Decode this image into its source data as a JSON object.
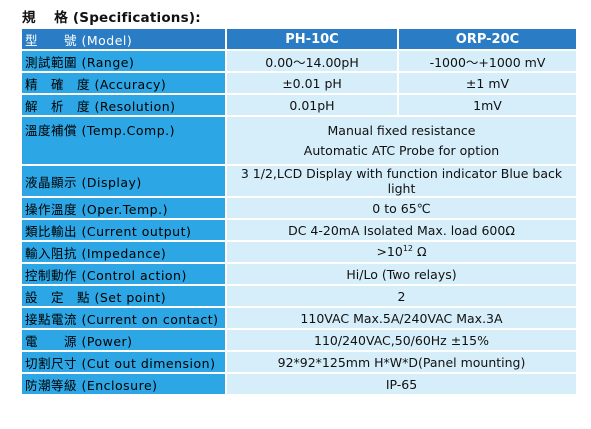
{
  "title": "規　 格 (Specifications):",
  "header": {
    "label": "型　　號 (Model)",
    "col_a": "PH-10C",
    "col_b": "ORP-20C"
  },
  "rows": [
    {
      "label": "測試範圍 (Range)",
      "a": "0.00～14.00pH",
      "b": "-1000～+1000 mV"
    },
    {
      "label": "精　確　度 (Accuracy)",
      "a": "±0.01 pH",
      "b": "±1 mV"
    },
    {
      "label": "解　析　度 (Resolution)",
      "a": "0.01pH",
      "b": "1mV"
    },
    {
      "label": "溫度補償 (Temp.Comp.)",
      "line1": "Manual fixed resistance",
      "line2": "Automatic ATC Probe for option"
    },
    {
      "label": "液晶顯示 (Display)",
      "value": "3 1/2,LCD Display with function indicator Blue back light"
    },
    {
      "label": "操作溫度 (Oper.Temp.)",
      "value": "0 to 65℃"
    },
    {
      "label": "類比輸出 (Current output)",
      "value": "DC 4-20mA Isolated Max. load 600Ω"
    },
    {
      "label": "輸入阻抗 (Impedance)",
      "value_pre": ">10",
      "value_sup": "12",
      "value_post": " Ω"
    },
    {
      "label": "控制動作 (Control action)",
      "value": "Hi/Lo  (Two relays)"
    },
    {
      "label": "設　定　點 (Set point)",
      "value": "2"
    },
    {
      "label": "接點電流 (Current on contact)",
      "value": "110VAC Max.5A/240VAC Max.3A"
    },
    {
      "label": "電　　源 (Power)",
      "value": "110/240VAC,50/60Hz ±15%"
    },
    {
      "label": "切割尺寸 (Cut out dimension)",
      "value": "92*92*125mm H*W*D(Panel mounting)"
    },
    {
      "label": "防潮等級 (Enclosure)",
      "value": "IP-65"
    }
  ]
}
